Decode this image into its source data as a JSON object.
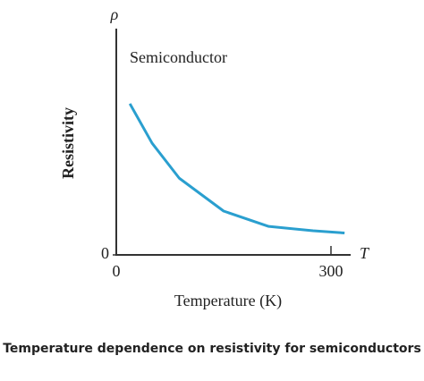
{
  "chart_data": {
    "type": "line",
    "caption": "Temperature dependence on resistivity for semiconductors",
    "annotation": "Semiconductor",
    "x_label": "Temperature (K)",
    "y_label": "Resistivity",
    "x_symbol": "T",
    "y_symbol": "ρ",
    "x": [
      19,
      50,
      88,
      150,
      213,
      275,
      319
    ],
    "series": [
      {
        "color": "#2a9fcf",
        "values": [
          69,
          51,
          35,
          20,
          13,
          11,
          10
        ]
      }
    ],
    "xlim": [
      0,
      325
    ],
    "ylim": [
      0,
      100
    ],
    "xticks": [
      0,
      300
    ],
    "yticks": [
      0
    ]
  }
}
